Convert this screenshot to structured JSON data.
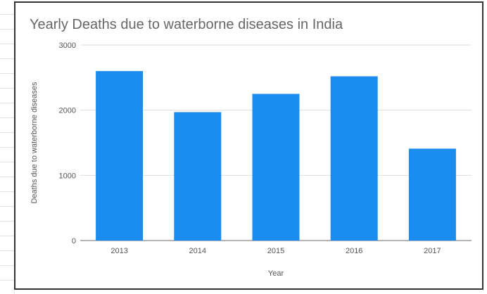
{
  "chart_data": {
    "type": "bar",
    "title": "Yearly Deaths due to waterborne diseases in India",
    "xlabel": "Year",
    "ylabel": "Deaths due to waterborne diseases",
    "categories": [
      "2013",
      "2014",
      "2015",
      "2016",
      "2017"
    ],
    "values": [
      2600,
      1970,
      2250,
      2520,
      1410
    ],
    "ylim": [
      0,
      3000
    ],
    "yticks": [
      "0",
      "1000",
      "2000",
      "3000"
    ],
    "bar_color": "#1a8cf0",
    "grid": true,
    "legend": "none"
  }
}
